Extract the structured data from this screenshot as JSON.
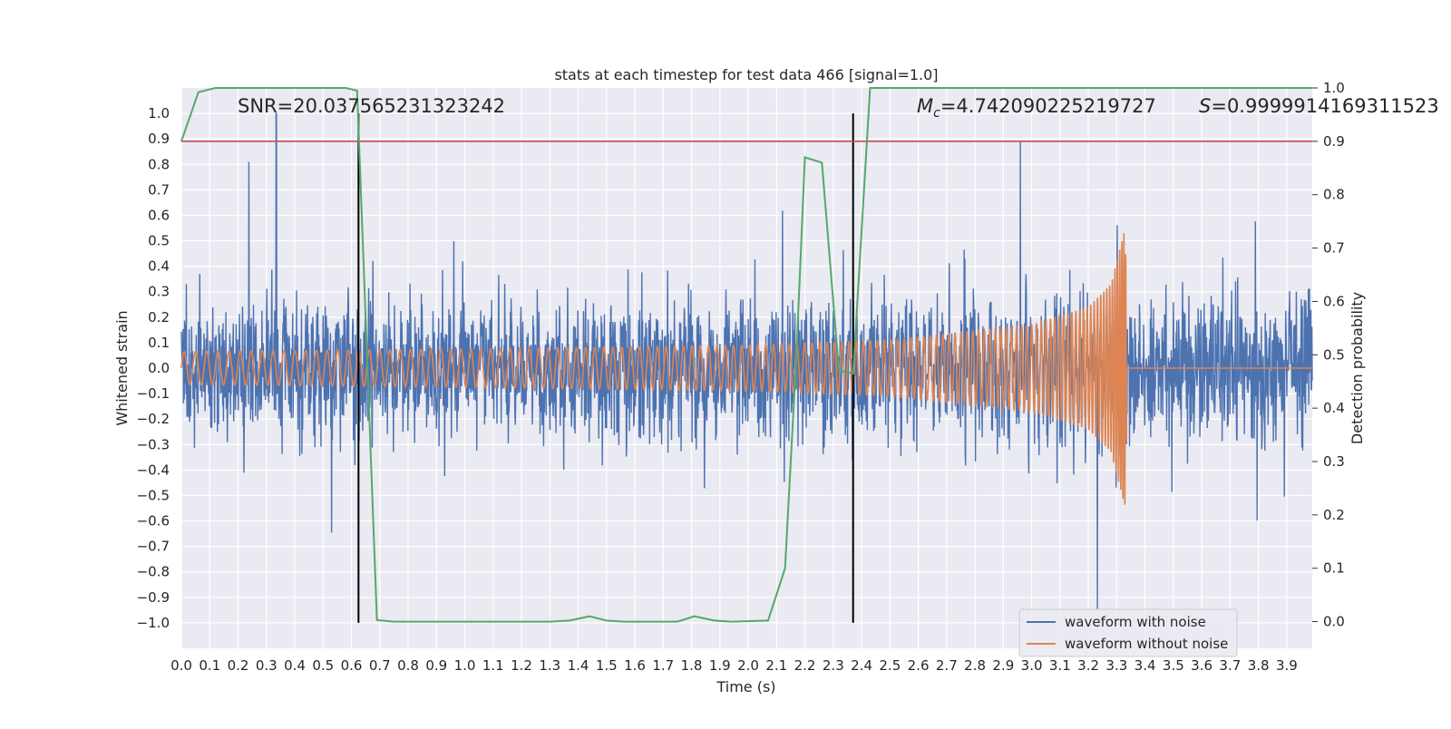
{
  "chart_data": {
    "type": "line",
    "title": "stats at each timestep for test data 466 [signal=1.0]",
    "xlabel": "Time (s)",
    "ylabel": "Whitened strain",
    "y2label": "Detection probability",
    "xlim": [
      0.0,
      3.99
    ],
    "ylim": [
      -1.1,
      1.1
    ],
    "y2lim": [
      -0.05,
      1.0
    ],
    "x_ticks": [
      "0.0",
      "0.1",
      "0.2",
      "0.3",
      "0.4",
      "0.5",
      "0.6",
      "0.7",
      "0.8",
      "0.9",
      "1.0",
      "1.1",
      "1.2",
      "1.3",
      "1.4",
      "1.5",
      "1.6",
      "1.7",
      "1.8",
      "1.9",
      "2.0",
      "2.1",
      "2.2",
      "2.3",
      "2.4",
      "2.5",
      "2.6",
      "2.7",
      "2.8",
      "2.9",
      "3.0",
      "3.1",
      "3.2",
      "3.3",
      "3.4",
      "3.5",
      "3.6",
      "3.7",
      "3.8",
      "3.9"
    ],
    "y_ticks": [
      "1.0",
      "0.9",
      "0.8",
      "0.7",
      "0.6",
      "0.5",
      "0.4",
      "0.3",
      "0.2",
      "0.1",
      "0.0",
      "−0.1",
      "−0.2",
      "−0.3",
      "−0.4",
      "−0.5",
      "−0.6",
      "−0.7",
      "−0.8",
      "−0.9",
      "−1.0"
    ],
    "y2_ticks": [
      "1.0",
      "0.9",
      "0.8",
      "0.7",
      "0.6",
      "0.5",
      "0.4",
      "0.3",
      "0.2",
      "0.1",
      "0.0"
    ],
    "grid": true,
    "legend_position": "bottom-right",
    "series": [
      {
        "name": "waveform with noise",
        "color": "#4c72b0",
        "axis": "left",
        "description": "noisy whitened strain, amplitude mostly within ±0.6, spikes to about 1.0 near 0.33 s and about -0.95 near 3.23 s"
      },
      {
        "name": "waveform without noise",
        "color": "#dd8452",
        "axis": "left",
        "chirp": {
          "amplitude_points": [
            [
              0.0,
              0.065
            ],
            [
              1.0,
              0.075
            ],
            [
              2.0,
              0.09
            ],
            [
              2.5,
              0.11
            ],
            [
              3.0,
              0.17
            ],
            [
              3.2,
              0.24
            ],
            [
              3.28,
              0.33
            ],
            [
              3.33,
              0.55
            ],
            [
              3.34,
              0.0
            ]
          ],
          "freq_start_hz": 25,
          "freq_end_hz": 300,
          "merger_time": 3.335
        }
      },
      {
        "color": "#55a868",
        "axis": "right",
        "x": [
          0.0,
          0.06,
          0.12,
          0.58,
          0.62,
          0.69,
          0.75,
          1.3,
          1.37,
          1.44,
          1.5,
          1.56,
          1.75,
          1.81,
          1.88,
          1.94,
          2.07,
          2.13,
          2.17,
          2.2,
          2.26,
          2.32,
          2.37,
          2.43,
          3.99
        ],
        "y": [
          0.9,
          0.992,
          1.0,
          1.0,
          0.995,
          0.003,
          0.0,
          0.0,
          0.002,
          0.01,
          0.002,
          0.0,
          0.0,
          0.01,
          0.002,
          0.0,
          0.002,
          0.1,
          0.5,
          0.87,
          0.86,
          0.47,
          0.465,
          1.0,
          1.0
        ]
      },
      {
        "color": "#c44e52",
        "axis": "right",
        "type": "hline",
        "y": 0.9
      }
    ],
    "vertical_markers": [
      {
        "x": 0.625,
        "color": "#000000"
      },
      {
        "x": 2.37,
        "color": "#000000"
      }
    ],
    "annotations": {
      "snr": "SNR=20.037565231323242",
      "mc_symbol": "M",
      "mc_sub": "c",
      "mc_value": "=4.742090225219727",
      "s_symbol": "S",
      "s_value": "=0.9999914169311523"
    }
  }
}
